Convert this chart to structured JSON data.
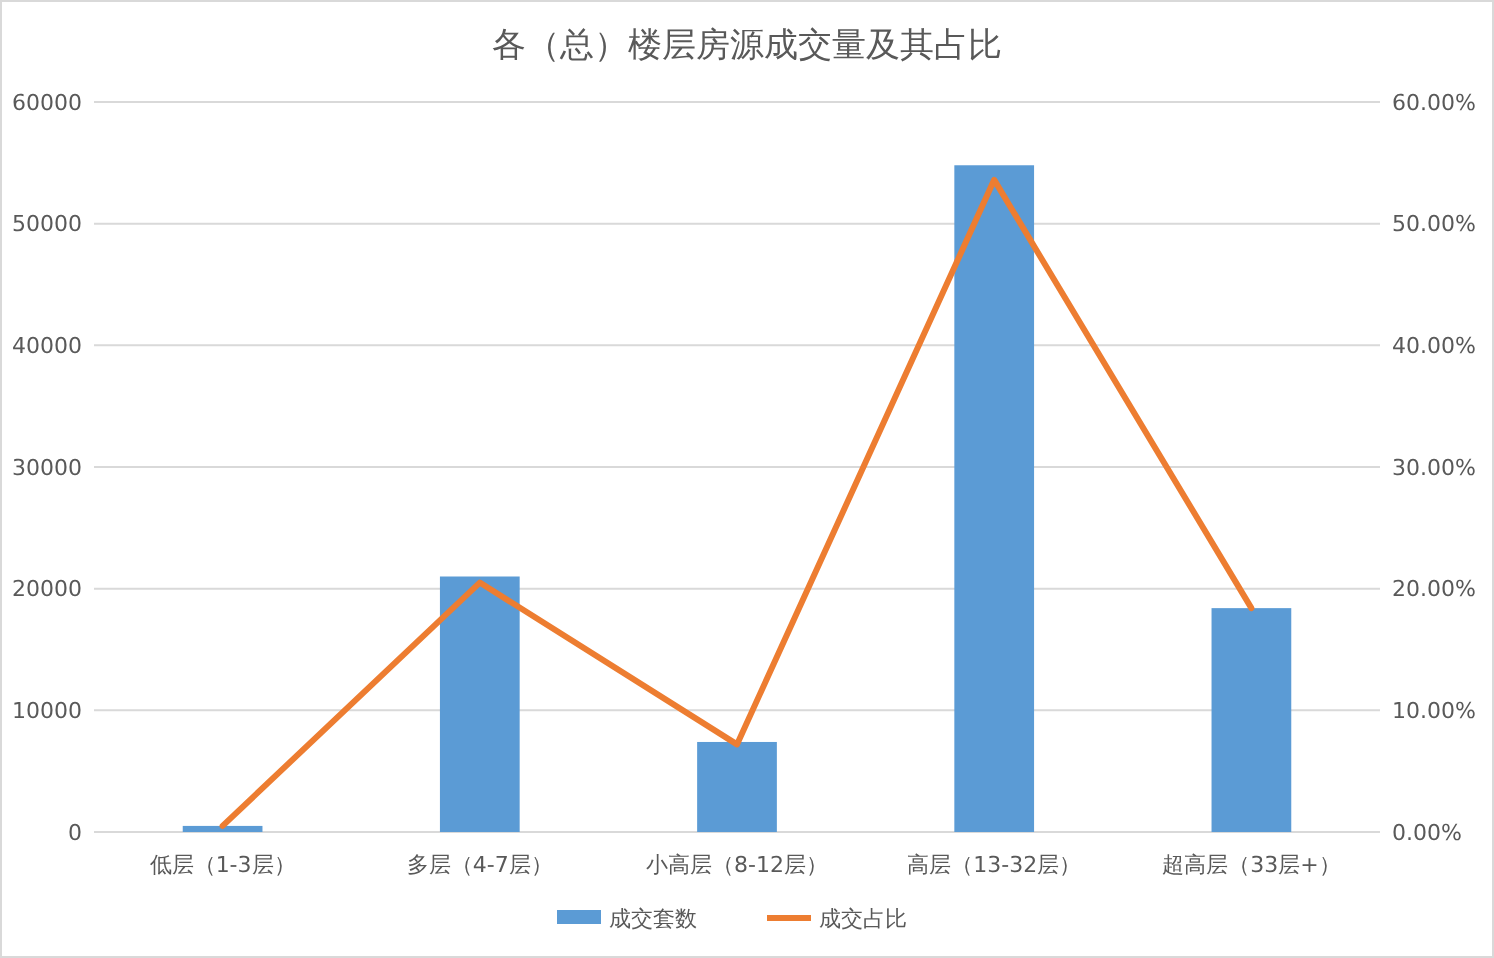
{
  "chart_data": {
    "type": "bar",
    "title": "各（总）楼层房源成交量及其占比",
    "categories": [
      "低层（1-3层）",
      "多层（4-7层）",
      "小高层（8-12层）",
      "高层（13-32层）",
      "超高层（33层+）"
    ],
    "series": [
      {
        "name": "成交套数",
        "color": "#5b9bd5",
        "values": [
          500,
          21000,
          7400,
          54800,
          18400
        ]
      },
      {
        "name": "成交占比",
        "type": "line",
        "axis": "y2",
        "color": "#ed7d31",
        "values": [
          0.5,
          20.5,
          7.2,
          53.6,
          18.4
        ]
      }
    ],
    "ylim": [
      0,
      60000
    ],
    "yticks": [
      0,
      10000,
      20000,
      30000,
      40000,
      50000,
      60000
    ],
    "y2lim": [
      0,
      60
    ],
    "y2ticks": [
      {
        "value": 0,
        "label": "0.00%"
      },
      {
        "value": 10,
        "label": "10.00%"
      },
      {
        "value": 20,
        "label": "20.00%"
      },
      {
        "value": 30,
        "label": "30.00%"
      },
      {
        "value": 40,
        "label": "40.00%"
      },
      {
        "value": 50,
        "label": "50.00%"
      },
      {
        "value": 60,
        "label": "60.00%"
      }
    ],
    "grid": "y",
    "legend": "bottom",
    "marker": "none",
    "line_style": "solid"
  }
}
